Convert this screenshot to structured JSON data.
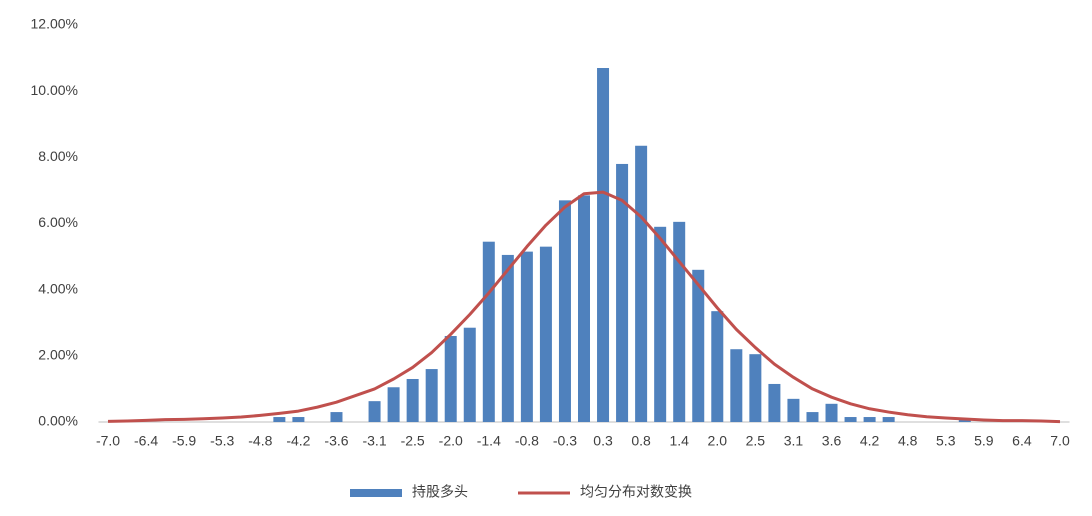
{
  "chart_data": {
    "type": "bar_line",
    "categories": [
      "-7.0",
      null,
      "-6.4",
      null,
      "-5.9",
      null,
      "-5.3",
      null,
      "-4.8",
      null,
      "-4.2",
      null,
      "-3.6",
      null,
      "-3.1",
      null,
      "-2.5",
      null,
      "-2.0",
      null,
      "-1.4",
      null,
      "-0.8",
      null,
      "-0.3",
      null,
      "0.3",
      null,
      "0.8",
      null,
      "1.4",
      null,
      "2.0",
      null,
      "2.5",
      null,
      "3.1",
      null,
      "3.6",
      null,
      "4.2",
      null,
      "4.8",
      null,
      "5.3",
      null,
      "5.9",
      null,
      "6.4",
      null,
      "7.0"
    ],
    "series": [
      {
        "name": "持股多头",
        "type": "bar",
        "color": "#4f81bd",
        "values": [
          0,
          0,
          0,
          0,
          0,
          0,
          0,
          0,
          0,
          0.15,
          0.15,
          0,
          0.3,
          0,
          0.63,
          1.05,
          1.3,
          1.6,
          2.6,
          2.85,
          5.45,
          5.05,
          5.15,
          5.3,
          6.7,
          6.85,
          10.7,
          7.8,
          8.35,
          5.9,
          6.05,
          4.6,
          3.35,
          2.2,
          2.05,
          1.15,
          0.7,
          0.3,
          0.55,
          0.15,
          0.15,
          0.15,
          0,
          0,
          0,
          0.1,
          0,
          0,
          0,
          0,
          0
        ]
      },
      {
        "name": "均匀分布对数变换",
        "type": "line",
        "color": "#c0504d",
        "values": [
          0.02,
          0.03,
          0.05,
          0.07,
          0.08,
          0.1,
          0.12,
          0.15,
          0.2,
          0.26,
          0.33,
          0.45,
          0.6,
          0.8,
          1.0,
          1.3,
          1.65,
          2.1,
          2.65,
          3.25,
          3.9,
          4.6,
          5.3,
          5.95,
          6.5,
          6.9,
          6.95,
          6.7,
          6.2,
          5.55,
          4.85,
          4.15,
          3.45,
          2.8,
          2.25,
          1.75,
          1.35,
          1.0,
          0.75,
          0.55,
          0.4,
          0.3,
          0.22,
          0.16,
          0.12,
          0.09,
          0.06,
          0.04,
          0.04,
          0.03,
          0.01
        ]
      }
    ],
    "ylim": [
      0,
      12
    ],
    "yticks": [
      {
        "value": 0,
        "label": "0.00%"
      },
      {
        "value": 2,
        "label": "2.00%"
      },
      {
        "value": 4,
        "label": "4.00%"
      },
      {
        "value": 6,
        "label": "6.00%"
      },
      {
        "value": 8,
        "label": "8.00%"
      },
      {
        "value": 10,
        "label": "10.00%"
      },
      {
        "value": 12,
        "label": "12.00%"
      }
    ],
    "legend": "bottom"
  }
}
